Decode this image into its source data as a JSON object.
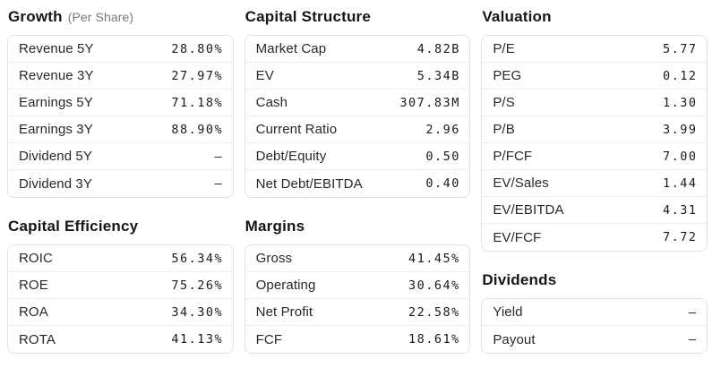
{
  "page": {
    "background": "#ffffff"
  },
  "colors": {
    "heading": "#141619",
    "subtitle": "#76797e",
    "label": "#26292d",
    "value": "#17191b",
    "card_border": "#dfe1e5",
    "row_divider": "#edeef0"
  },
  "sections": [
    {
      "id": "growth",
      "title": "Growth",
      "subtitle": "(Per Share)",
      "column": 0,
      "rows": [
        {
          "label": "Revenue 5Y",
          "value": "28.80%"
        },
        {
          "label": "Revenue 3Y",
          "value": "27.97%"
        },
        {
          "label": "Earnings 5Y",
          "value": "71.18%"
        },
        {
          "label": "Earnings 3Y",
          "value": "88.90%"
        },
        {
          "label": "Dividend 5Y",
          "value": "–"
        },
        {
          "label": "Dividend 3Y",
          "value": "–"
        }
      ]
    },
    {
      "id": "capital-efficiency",
      "title": "Capital Efficiency",
      "subtitle": "",
      "column": 0,
      "rows": [
        {
          "label": "ROIC",
          "value": "56.34%"
        },
        {
          "label": "ROE",
          "value": "75.26%"
        },
        {
          "label": "ROA",
          "value": "34.30%"
        },
        {
          "label": "ROTA",
          "value": "41.13%"
        }
      ]
    },
    {
      "id": "capital-structure",
      "title": "Capital Structure",
      "subtitle": "",
      "column": 1,
      "rows": [
        {
          "label": "Market Cap",
          "value": "4.82B"
        },
        {
          "label": "EV",
          "value": "5.34B"
        },
        {
          "label": "Cash",
          "value": "307.83M"
        },
        {
          "label": "Current Ratio",
          "value": "2.96"
        },
        {
          "label": "Debt/Equity",
          "value": "0.50"
        },
        {
          "label": "Net Debt/EBITDA",
          "value": "0.40"
        }
      ]
    },
    {
      "id": "margins",
      "title": "Margins",
      "subtitle": "",
      "column": 1,
      "rows": [
        {
          "label": "Gross",
          "value": "41.45%"
        },
        {
          "label": "Operating",
          "value": "30.64%"
        },
        {
          "label": "Net Profit",
          "value": "22.58%"
        },
        {
          "label": "FCF",
          "value": "18.61%"
        }
      ]
    },
    {
      "id": "valuation",
      "title": "Valuation",
      "subtitle": "",
      "column": 2,
      "rows": [
        {
          "label": "P/E",
          "value": "5.77"
        },
        {
          "label": "PEG",
          "value": "0.12"
        },
        {
          "label": "P/S",
          "value": "1.30"
        },
        {
          "label": "P/B",
          "value": "3.99"
        },
        {
          "label": "P/FCF",
          "value": "7.00"
        },
        {
          "label": "EV/Sales",
          "value": "1.44"
        },
        {
          "label": "EV/EBITDA",
          "value": "4.31"
        },
        {
          "label": "EV/FCF",
          "value": "7.72"
        }
      ]
    },
    {
      "id": "dividends",
      "title": "Dividends",
      "subtitle": "",
      "column": 2,
      "rows": [
        {
          "label": "Yield",
          "value": "–"
        },
        {
          "label": "Payout",
          "value": "–"
        }
      ]
    }
  ]
}
